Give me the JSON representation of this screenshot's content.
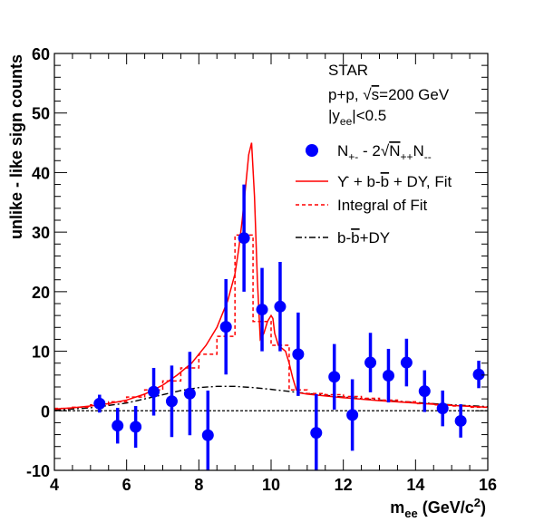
{
  "chart_data": {
    "type": "scatter",
    "xlabel_base": "m",
    "xlabel_sub": "ee",
    "xlabel_unit_pre": " (GeV/c",
    "xlabel_unit_sup": "2",
    "xlabel_unit_post": ")",
    "ylabel": "unlike - like sign counts",
    "xlim": [
      4,
      16
    ],
    "ylim": [
      -10,
      60
    ],
    "x_ticks": [
      4,
      6,
      8,
      10,
      12,
      14,
      16
    ],
    "x_tick_labels": [
      "4",
      "6",
      "8",
      "10",
      "12",
      "14",
      "16"
    ],
    "y_ticks": [
      -10,
      0,
      10,
      20,
      30,
      40,
      50,
      60
    ],
    "y_tick_labels": [
      "-10",
      "0",
      "10",
      "20",
      "30",
      "40",
      "50",
      "60"
    ],
    "annotation": {
      "experiment": "STAR",
      "system_pre": "p+p, ",
      "system_sqrt": "s",
      "system_post": "=200 GeV",
      "rapidity_pre": "|y",
      "rapidity_sub": "ee",
      "rapidity_post": "|<0.5"
    },
    "legend": {
      "data_label_N": "N",
      "data_label_sub1": "+-",
      "data_label_mid": " - 2",
      "data_label_N2": "N",
      "data_label_sub2": "++",
      "data_label_N3": "N",
      "data_label_sub3": "--",
      "fit_label_prefix": "ϒ + b-",
      "fit_label_bbar": "b",
      "fit_label_suffix": " + DY, Fit",
      "integral_label": "Integral of Fit",
      "bkg_label_prefix": "b-",
      "bkg_label_bbar": "b",
      "bkg_label_suffix": "+DY"
    },
    "colors": {
      "data": "#0000ff",
      "fit": "#ff0000",
      "integral": "#ff0000",
      "background": "#000000",
      "zero_line": "#000000"
    },
    "series": [
      {
        "kind": "data_points",
        "x": [
          5.25,
          5.75,
          6.25,
          6.75,
          7.25,
          7.75,
          8.25,
          8.75,
          9.25,
          9.75,
          10.25,
          10.75,
          11.25,
          11.75,
          12.25,
          12.75,
          13.25,
          13.75,
          14.25,
          14.75,
          15.25,
          15.75
        ],
        "y": [
          1.2,
          -2.5,
          -2.7,
          3.2,
          1.6,
          2.9,
          -4.1,
          14.1,
          29.0,
          17.0,
          17.5,
          9.5,
          -3.7,
          5.7,
          -0.7,
          8.1,
          5.9,
          8.1,
          3.3,
          0.4,
          -1.7,
          6.1
        ],
        "err": [
          1.5,
          3.0,
          3.5,
          4.0,
          6.0,
          7.0,
          7.5,
          8.0,
          9.0,
          7.0,
          7.5,
          7.0,
          6.5,
          5.5,
          6.0,
          5.0,
          4.5,
          4.0,
          3.5,
          3.0,
          2.8,
          2.3
        ]
      },
      {
        "kind": "fit_curve",
        "x": [
          4.0,
          4.5,
          5.0,
          5.5,
          6.0,
          6.5,
          7.0,
          7.4,
          7.8,
          8.2,
          8.5,
          8.8,
          9.0,
          9.1,
          9.2,
          9.3,
          9.38,
          9.46,
          9.54,
          9.62,
          9.7,
          9.8,
          9.9,
          10.0,
          10.05,
          10.1,
          10.2,
          10.3,
          10.4,
          10.5,
          10.6,
          10.7,
          10.8,
          11.0,
          11.5,
          12.0,
          13.0,
          14.0,
          15.0,
          16.0
        ],
        "y": [
          0.3,
          0.5,
          0.8,
          1.2,
          1.8,
          2.8,
          4.3,
          6.0,
          8.0,
          11.0,
          14.0,
          18.5,
          23.0,
          27.0,
          32.0,
          38.0,
          43.0,
          45.0,
          36.0,
          22.0,
          12.0,
          13.0,
          15.0,
          16.0,
          15.5,
          13.0,
          11.0,
          10.5,
          10.0,
          8.0,
          5.5,
          3.5,
          3.0,
          2.8,
          2.5,
          2.2,
          1.7,
          1.3,
          0.9,
          0.6
        ]
      },
      {
        "kind": "integral_histogram",
        "bin_edges": [
          4.0,
          4.5,
          5.0,
          5.5,
          6.0,
          6.5,
          7.0,
          7.5,
          8.0,
          8.5,
          9.0,
          9.5,
          10.0,
          10.5,
          11.0,
          11.5,
          12.0,
          12.5,
          13.0,
          13.5,
          14.0,
          14.5,
          15.0,
          15.5,
          16.0
        ],
        "values": [
          0.4,
          0.6,
          1.0,
          1.5,
          2.3,
          3.5,
          5.0,
          7.2,
          9.5,
          12.5,
          29.5,
          15.0,
          11.0,
          3.5,
          2.9,
          2.7,
          2.4,
          2.1,
          1.8,
          1.5,
          1.2,
          1.0,
          0.8,
          0.6
        ]
      },
      {
        "kind": "background_curve",
        "x": [
          4.0,
          5.0,
          6.0,
          7.0,
          7.5,
          8.0,
          8.5,
          9.0,
          9.5,
          10.0,
          11.0,
          12.0,
          13.0,
          14.0,
          15.0,
          16.0
        ],
        "y": [
          0.1,
          0.5,
          1.3,
          2.7,
          3.4,
          3.9,
          4.1,
          4.1,
          3.9,
          3.6,
          2.9,
          2.3,
          1.8,
          1.4,
          1.0,
          0.7
        ]
      }
    ]
  }
}
